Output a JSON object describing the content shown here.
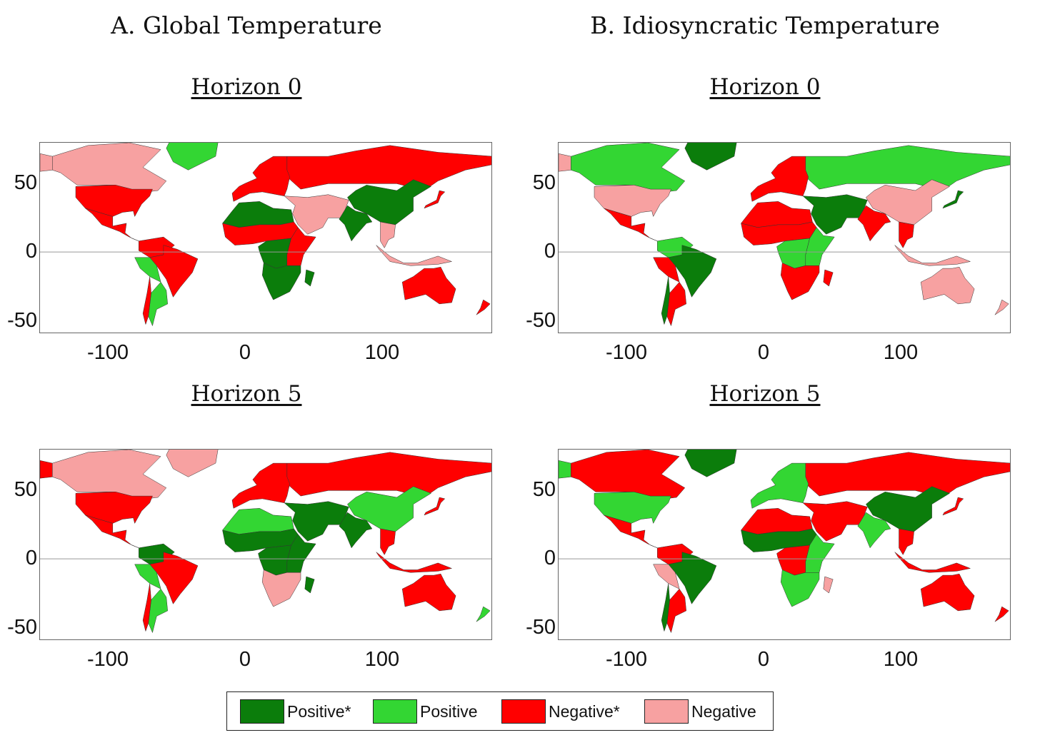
{
  "panels": [
    {
      "title": "A. Global Temperature",
      "horizons": [
        "Horizon 0",
        "Horizon 5"
      ]
    },
    {
      "title": "B. Idiosyncratic Temperature",
      "horizons": [
        "Horizon 0",
        "Horizon 5"
      ]
    }
  ],
  "axes": {
    "x_ticks": [
      "-100",
      "0",
      "100"
    ],
    "y_ticks": [
      "50",
      "0",
      "-50"
    ],
    "xlim": [
      -150,
      180
    ],
    "ylim": [
      -60,
      80
    ]
  },
  "legend": {
    "items": [
      {
        "label": "Positive*",
        "color": "#0b7d0b"
      },
      {
        "label": "Positive",
        "color": "#33d633"
      },
      {
        "label": "Negative*",
        "color": "#ff0000"
      },
      {
        "label": "Negative",
        "color": "#f7a1a1"
      }
    ]
  },
  "colors": {
    "positive_sig": "#0b7d0b",
    "positive": "#33d633",
    "negative_sig": "#ff0000",
    "negative": "#f7a1a1",
    "zero_line": "#999999"
  },
  "maps": [
    {
      "id": "global-h0",
      "regions": {
        "alaska": "negative",
        "canada": "negative",
        "greenland": "positive",
        "usa": "negative_sig",
        "mexico_central": "negative_sig",
        "south_america_north": "negative_sig",
        "brazil": "negative_sig",
        "south_america_west": "positive",
        "argentina": "positive",
        "chile": "negative_sig",
        "russia": "negative_sig",
        "europe": "negative_sig",
        "china": "positive_sig",
        "middle_east": "negative",
        "india": "positive_sig",
        "southeast_asia": "negative",
        "north_africa": "positive_sig",
        "sahel": "negative_sig",
        "central_africa": "positive_sig",
        "east_africa": "negative_sig",
        "southern_africa": "positive_sig",
        "madagascar": "positive_sig",
        "australia": "negative_sig",
        "new_zealand": "negative_sig",
        "japan": "negative_sig",
        "indonesia": "negative"
      }
    },
    {
      "id": "idio-h0",
      "regions": {
        "alaska": "negative",
        "canada": "positive",
        "greenland": "positive_sig",
        "usa": "negative",
        "mexico_central": "negative_sig",
        "south_america_north": "positive",
        "brazil": "positive_sig",
        "south_america_west": "negative_sig",
        "argentina": "negative_sig",
        "chile": "positive_sig",
        "russia": "positive",
        "europe": "negative_sig",
        "china": "negative",
        "middle_east": "positive_sig",
        "india": "negative_sig",
        "southeast_asia": "negative_sig",
        "north_africa": "negative_sig",
        "sahel": "negative_sig",
        "central_africa": "positive",
        "east_africa": "positive",
        "southern_africa": "negative_sig",
        "madagascar": "negative_sig",
        "australia": "negative",
        "new_zealand": "negative",
        "japan": "positive_sig",
        "indonesia": "negative"
      }
    },
    {
      "id": "global-h5",
      "regions": {
        "alaska": "negative_sig",
        "canada": "negative",
        "greenland": "negative",
        "usa": "negative_sig",
        "mexico_central": "negative_sig",
        "south_america_north": "positive_sig",
        "brazil": "negative_sig",
        "south_america_west": "positive",
        "argentina": "positive",
        "chile": "negative_sig",
        "russia": "negative_sig",
        "europe": "negative_sig",
        "china": "positive",
        "middle_east": "positive_sig",
        "india": "positive_sig",
        "southeast_asia": "negative_sig",
        "north_africa": "positive",
        "sahel": "positive_sig",
        "central_africa": "positive_sig",
        "east_africa": "positive_sig",
        "southern_africa": "negative",
        "madagascar": "positive_sig",
        "australia": "negative_sig",
        "new_zealand": "positive",
        "japan": "negative_sig",
        "indonesia": "negative_sig"
      }
    },
    {
      "id": "idio-h5",
      "regions": {
        "alaska": "positive",
        "canada": "negative_sig",
        "greenland": "positive_sig",
        "usa": "positive",
        "mexico_central": "negative_sig",
        "south_america_north": "negative_sig",
        "brazil": "positive_sig",
        "south_america_west": "negative",
        "argentina": "negative_sig",
        "chile": "positive_sig",
        "russia": "negative_sig",
        "europe": "positive",
        "china": "positive_sig",
        "middle_east": "negative_sig",
        "india": "positive",
        "southeast_asia": "negative_sig",
        "north_africa": "negative_sig",
        "sahel": "positive_sig",
        "central_africa": "negative_sig",
        "east_africa": "positive",
        "southern_africa": "positive",
        "madagascar": "negative",
        "australia": "negative_sig",
        "new_zealand": "negative_sig",
        "japan": "negative_sig",
        "indonesia": "negative_sig"
      }
    }
  ]
}
